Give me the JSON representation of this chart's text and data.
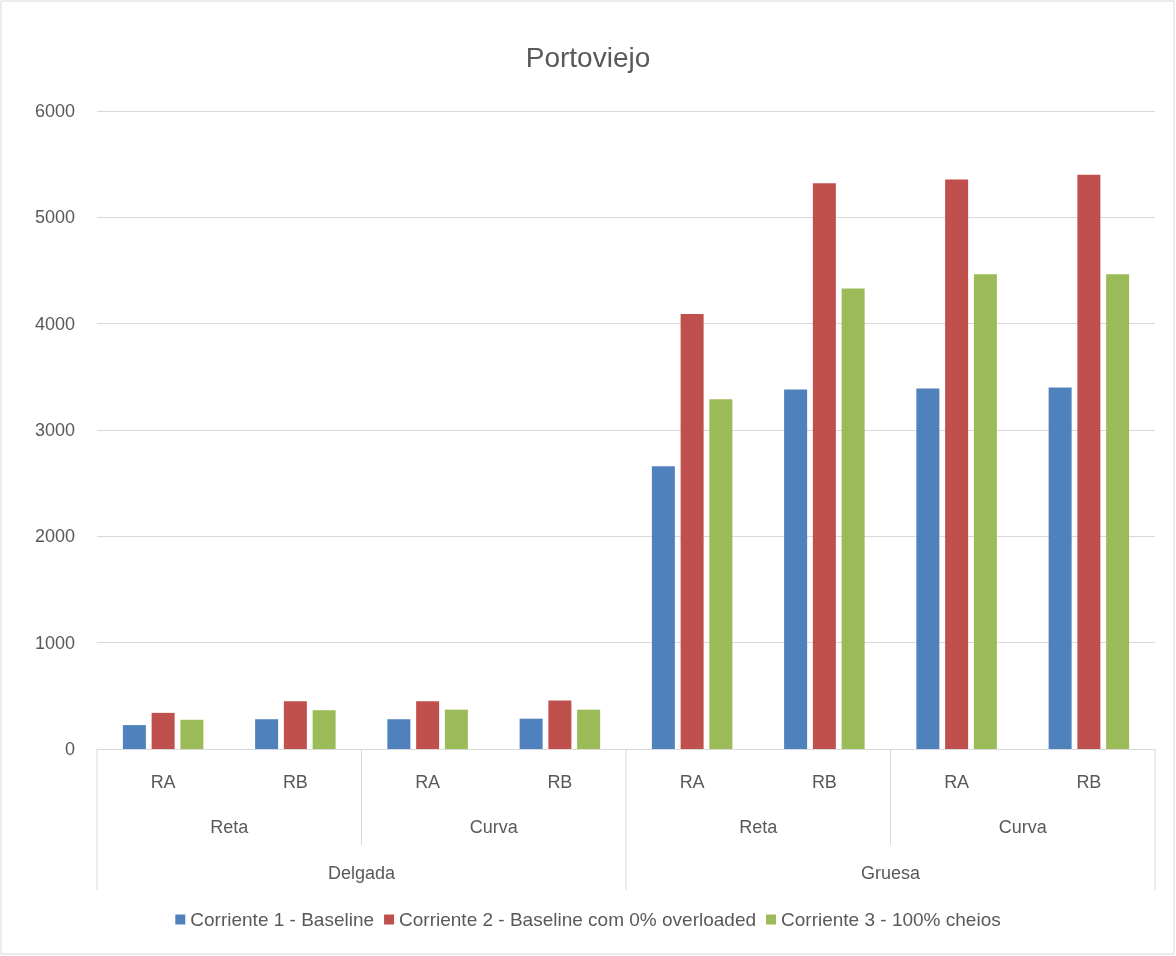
{
  "chart_data": {
    "type": "bar",
    "title": "Portoviejo",
    "categories": [
      "RA",
      "RB",
      "RA",
      "RB",
      "RA",
      "RB",
      "RA",
      "RB"
    ],
    "series": [
      {
        "name": "Corriente 1 - Baseline",
        "color": "#4f81bd",
        "values": [
          225,
          280,
          280,
          285,
          2660,
          3380,
          3390,
          3400
        ]
      },
      {
        "name": "Corriente 2 - Baseline com 0% overloaded",
        "color": "#c0504d",
        "values": [
          340,
          450,
          450,
          455,
          4090,
          5320,
          5355,
          5400
        ]
      },
      {
        "name": "Corriente 3 - 100% cheios",
        "color": "#9bbb59",
        "values": [
          275,
          365,
          370,
          370,
          3290,
          4330,
          4465,
          4465
        ]
      }
    ],
    "annotations": [
      "Reta",
      "Curva",
      "Reta",
      "Curva",
      "Delgada",
      "Gruesa"
    ],
    "ylim": [
      0,
      6000
    ],
    "yticks": [
      0,
      1000,
      2000,
      3000,
      4000,
      5000,
      6000
    ],
    "grid": "y",
    "legend": "bottom"
  }
}
